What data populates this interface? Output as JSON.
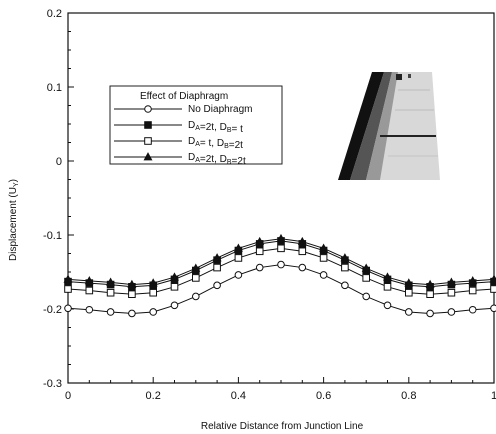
{
  "chart_data": {
    "type": "line",
    "title": "",
    "xlabel": "Relative Distance from Junction Line",
    "ylabel": "Displacement (U",
    "ylabel_sub": "Y",
    "ylabel_close": ")",
    "xlim": [
      0,
      1
    ],
    "ylim": [
      -0.3,
      0.2
    ],
    "xticks": [
      0,
      0.2,
      0.4,
      0.6,
      0.8,
      1
    ],
    "xtick_labels": [
      "0",
      "0.2",
      "0.4",
      "0.6",
      "0.8",
      "1"
    ],
    "yticks": [
      -0.3,
      -0.2,
      -0.1,
      0,
      0.1,
      0.2
    ],
    "ytick_labels": [
      "-0.3",
      "-0.2",
      "-0.1",
      "0",
      "0.1",
      "0.2"
    ],
    "grid": false,
    "legend": {
      "title": "Effect of Diaphragm",
      "placement": "upper-left",
      "entries": [
        {
          "parts": [
            [
              "No Diaphragm",
              ""
            ]
          ]
        },
        {
          "parts": [
            [
              "D",
              "A"
            ],
            [
              "=2t, D",
              "B"
            ],
            [
              "= t",
              ""
            ]
          ]
        },
        {
          "parts": [
            [
              "D",
              "A"
            ],
            [
              "= t, D",
              "B"
            ],
            [
              "=2t",
              ""
            ]
          ]
        },
        {
          "parts": [
            [
              "D",
              "A"
            ],
            [
              "=2t, D",
              "B"
            ],
            [
              "=2t",
              ""
            ]
          ]
        }
      ]
    },
    "x": [
      0,
      0.05,
      0.1,
      0.15,
      0.2,
      0.25,
      0.3,
      0.35,
      0.4,
      0.45,
      0.5,
      0.55,
      0.6,
      0.65,
      0.7,
      0.75,
      0.8,
      0.85,
      0.9,
      0.95,
      1
    ],
    "series": [
      {
        "name": "No Diaphragm",
        "marker": "circle-open",
        "values": [
          -0.199,
          -0.201,
          -0.204,
          -0.206,
          -0.204,
          -0.195,
          -0.183,
          -0.168,
          -0.154,
          -0.144,
          -0.14,
          -0.144,
          -0.154,
          -0.168,
          -0.183,
          -0.195,
          -0.204,
          -0.206,
          -0.204,
          -0.201,
          -0.199
        ]
      },
      {
        "name": "DA=2t, DB=t",
        "marker": "square-filled",
        "values": [
          -0.163,
          -0.165,
          -0.167,
          -0.17,
          -0.168,
          -0.16,
          -0.148,
          -0.134,
          -0.121,
          -0.112,
          -0.108,
          -0.112,
          -0.121,
          -0.134,
          -0.148,
          -0.16,
          -0.168,
          -0.17,
          -0.167,
          -0.165,
          -0.163
        ]
      },
      {
        "name": "DA=t, DB=2t",
        "marker": "square-open",
        "values": [
          -0.173,
          -0.175,
          -0.178,
          -0.18,
          -0.178,
          -0.17,
          -0.158,
          -0.144,
          -0.131,
          -0.122,
          -0.118,
          -0.122,
          -0.131,
          -0.144,
          -0.158,
          -0.17,
          -0.178,
          -0.18,
          -0.178,
          -0.175,
          -0.173
        ]
      },
      {
        "name": "DA=2t, DB=2t",
        "marker": "triangle-filled",
        "values": [
          -0.16,
          -0.162,
          -0.164,
          -0.167,
          -0.165,
          -0.157,
          -0.145,
          -0.131,
          -0.118,
          -0.109,
          -0.105,
          -0.109,
          -0.118,
          -0.131,
          -0.145,
          -0.157,
          -0.165,
          -0.167,
          -0.164,
          -0.162,
          -0.16
        ]
      }
    ]
  }
}
